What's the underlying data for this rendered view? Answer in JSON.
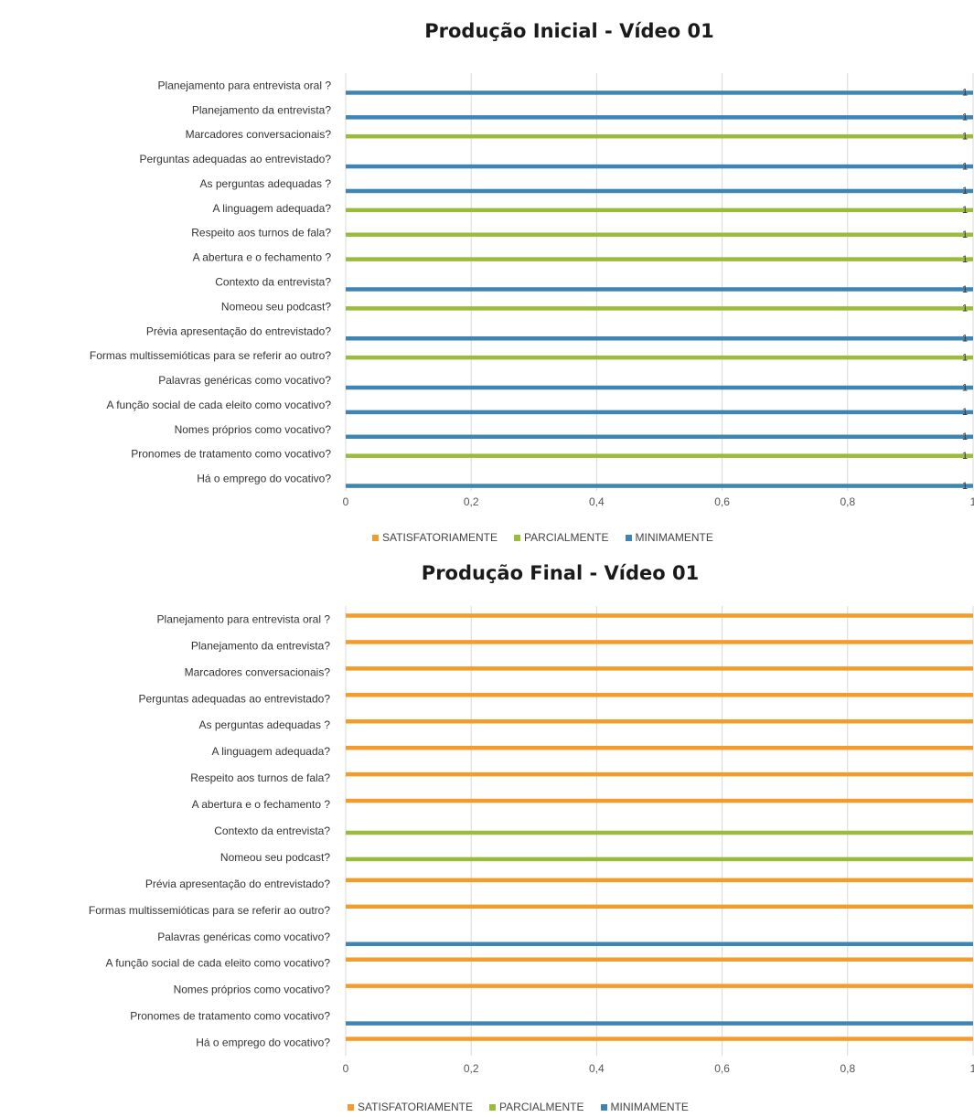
{
  "chart_data": [
    {
      "type": "bar",
      "orientation": "horizontal",
      "title": "Produção Inicial - Vídeo 01",
      "categories": [
        "Planejamento para entrevista oral ?",
        "Planejamento da entrevista?",
        "Marcadores conversacionais?",
        "Perguntas adequadas ao entrevistado?",
        "As perguntas  adequadas ?",
        "A linguagem adequada?",
        "Respeito aos turnos de fala?",
        "A abertura e o fechamento ?",
        "Contexto da entrevista?",
        "Nomeou seu podcast?",
        "Prévia apresentação do entrevistado?",
        "Formas multissemióticas para se referir ao outro?",
        "Palavras genéricas como vocativo?",
        "A função social de cada eleito como vocativo?",
        "Nomes próprios como vocativo?",
        "Pronomes de tratamento como vocativo?",
        "Há o emprego do vocativo?"
      ],
      "series": [
        {
          "name": "SATISFATORIAMENTE",
          "color": "#f39c2c",
          "values": [
            0,
            0,
            0,
            0,
            0,
            0,
            0,
            0,
            0,
            0,
            0,
            0,
            0,
            0,
            0,
            0,
            0
          ]
        },
        {
          "name": "PARCIALMENTE",
          "color": "#9bbb3b",
          "values": [
            0,
            0,
            1,
            0,
            0,
            1,
            1,
            1,
            0,
            1,
            0,
            1,
            0,
            0,
            0,
            1,
            0
          ]
        },
        {
          "name": "MINIMAMENTE",
          "color": "#3f85b4",
          "values": [
            1,
            1,
            0,
            1,
            1,
            0,
            0,
            0,
            1,
            0,
            1,
            0,
            1,
            1,
            1,
            0,
            1
          ]
        }
      ],
      "data_label": "1",
      "xlim": [
        0,
        1
      ],
      "xticks": [
        "0",
        "0,2",
        "0,4",
        "0,6",
        "0,8",
        "1"
      ],
      "grid": true,
      "legend_position": "bottom"
    },
    {
      "type": "bar",
      "orientation": "horizontal",
      "title": "Produção Final - Vídeo 01",
      "categories": [
        "Planejamento para entrevista oral ?",
        "Planejamento da entrevista?",
        "Marcadores conversacionais?",
        "Perguntas adequadas ao entrevistado?",
        "As perguntas  adequadas ?",
        "A linguagem adequada?",
        "Respeito aos turnos de fala?",
        "A abertura e o fechamento ?",
        "Contexto da entrevista?",
        "Nomeou seu podcast?",
        "Prévia apresentação do entrevistado?",
        "Formas multissemióticas para se referir ao outro?",
        "Palavras genéricas como vocativo?",
        "A função social de cada eleito como vocativo?",
        "Nomes próprios como vocativo?",
        "Pronomes de tratamento como vocativo?",
        "Há o emprego do vocativo?"
      ],
      "series": [
        {
          "name": "SATISFATORIAMENTE",
          "color": "#f39c2c",
          "values": [
            1,
            1,
            1,
            1,
            1,
            1,
            1,
            1,
            0,
            0,
            1,
            1,
            0,
            1,
            1,
            0,
            1
          ]
        },
        {
          "name": "PARCIALMENTE",
          "color": "#9bbb3b",
          "values": [
            0,
            0,
            0,
            0,
            0,
            0,
            0,
            0,
            1,
            1,
            0,
            0,
            0,
            0,
            0,
            0,
            0
          ]
        },
        {
          "name": "MINIMAMENTE",
          "color": "#3f85b4",
          "values": [
            0,
            0,
            0,
            0,
            0,
            0,
            0,
            0,
            0,
            0,
            0,
            0,
            1,
            0,
            0,
            1,
            0
          ]
        }
      ],
      "xlim": [
        0,
        1
      ],
      "xticks": [
        "0",
        "0,2",
        "0,4",
        "0,6",
        "0,8",
        "1"
      ],
      "grid": true,
      "legend_position": "bottom"
    }
  ]
}
